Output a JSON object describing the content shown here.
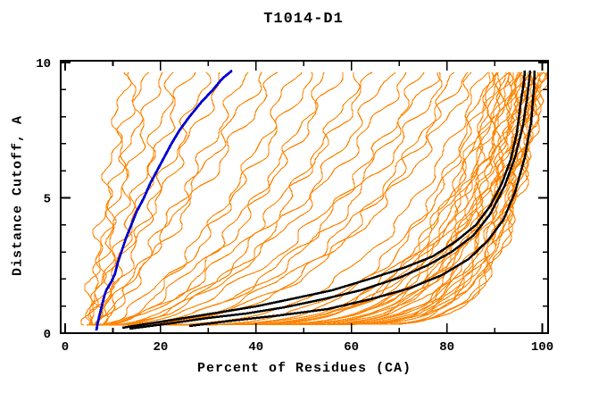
{
  "chart_data": {
    "type": "line",
    "title": "T1014-D1",
    "xlabel": "Percent of Residues (CA)",
    "ylabel": "Distance Cutoff, A",
    "xlim": [
      0,
      100
    ],
    "ylim": [
      0,
      10
    ],
    "grid": false,
    "legend": "none",
    "xticks_major": [
      0,
      20,
      40,
      60,
      80,
      100
    ],
    "xticks_minor": [
      10,
      30,
      50,
      70,
      90
    ],
    "xtick_labels": [
      "0",
      "20",
      "40",
      "60",
      "80",
      "100"
    ],
    "yticks_major": [
      0,
      5,
      10
    ],
    "yticks_minor": [
      1,
      2,
      3,
      4,
      6,
      7,
      8,
      9
    ],
    "ytick_labels": [
      "0",
      "5",
      "10"
    ],
    "colors": {
      "orange": "#ff8400",
      "blue": "#0000d2",
      "black": "#000000",
      "frame": "#000000",
      "background": "#ffffff"
    },
    "blue_curve": {
      "points": [
        [
          6.5,
          0.1
        ],
        [
          6.8,
          0.3
        ],
        [
          7.2,
          0.6
        ],
        [
          7.7,
          1.0
        ],
        [
          8.2,
          1.4
        ],
        [
          8.6,
          1.6
        ],
        [
          9.8,
          1.9
        ],
        [
          10.4,
          2.2
        ],
        [
          11.0,
          2.6
        ],
        [
          11.8,
          3.0
        ],
        [
          12.8,
          3.5
        ],
        [
          13.8,
          4.0
        ],
        [
          15.0,
          4.5
        ],
        [
          16.5,
          5.0
        ],
        [
          17.8,
          5.5
        ],
        [
          19.2,
          6.0
        ],
        [
          20.8,
          6.5
        ],
        [
          22.3,
          7.0
        ],
        [
          24.0,
          7.5
        ],
        [
          26.0,
          8.0
        ],
        [
          28.5,
          8.5
        ],
        [
          31.0,
          9.0
        ],
        [
          33.0,
          9.4
        ],
        [
          35.0,
          9.7
        ]
      ]
    },
    "black_curves": [
      {
        "points": [
          [
            12,
            0.2
          ],
          [
            18,
            0.35
          ],
          [
            25,
            0.55
          ],
          [
            32,
            0.75
          ],
          [
            40,
            1.0
          ],
          [
            48,
            1.3
          ],
          [
            56,
            1.6
          ],
          [
            64,
            2.0
          ],
          [
            71,
            2.4
          ],
          [
            77,
            2.85
          ],
          [
            82,
            3.4
          ],
          [
            86,
            4.0
          ],
          [
            89,
            4.7
          ],
          [
            91.5,
            5.5
          ],
          [
            93.3,
            6.4
          ],
          [
            94.6,
            7.4
          ],
          [
            95.5,
            8.4
          ],
          [
            96.1,
            9.3
          ],
          [
            96.4,
            9.7
          ]
        ]
      },
      {
        "points": [
          [
            13.5,
            0.18
          ],
          [
            22,
            0.35
          ],
          [
            30,
            0.55
          ],
          [
            38,
            0.72
          ],
          [
            46,
            0.95
          ],
          [
            54,
            1.25
          ],
          [
            62,
            1.6
          ],
          [
            70,
            2.05
          ],
          [
            76,
            2.5
          ],
          [
            81,
            3.0
          ],
          [
            85.5,
            3.6
          ],
          [
            89,
            4.4
          ],
          [
            92,
            5.4
          ],
          [
            94.3,
            6.5
          ],
          [
            96,
            7.7
          ],
          [
            97,
            8.8
          ],
          [
            97.4,
            9.7
          ]
        ]
      },
      {
        "points": [
          [
            26,
            0.25
          ],
          [
            35,
            0.45
          ],
          [
            45,
            0.65
          ],
          [
            55,
            0.9
          ],
          [
            64,
            1.25
          ],
          [
            72,
            1.65
          ],
          [
            79,
            2.15
          ],
          [
            84.5,
            2.75
          ],
          [
            88.5,
            3.4
          ],
          [
            91.8,
            4.2
          ],
          [
            94.3,
            5.2
          ],
          [
            96.3,
            6.5
          ],
          [
            97.6,
            7.8
          ],
          [
            98.2,
            9.0
          ],
          [
            98.4,
            9.7
          ]
        ]
      }
    ],
    "orange_curve_model": "x(y) = x0 + (xtop - x0) * ((y-0.25)/9.45)^p  for y in [0.3, 9.7], estimated from plot",
    "orange_curve_format": [
      "x0_percent_at_bottom",
      "xtop_percent_at_top",
      "shape_exponent_p"
    ],
    "orange_curves": [
      [
        4.5,
        12.5,
        1.0
      ],
      [
        5.5,
        15,
        1.15
      ],
      [
        4.0,
        17,
        0.9
      ],
      [
        6.0,
        20,
        1.2
      ],
      [
        5.0,
        23,
        0.85
      ],
      [
        6.5,
        26,
        1.1
      ],
      [
        7.0,
        30,
        0.95
      ],
      [
        5.5,
        34,
        1.05
      ],
      [
        6.0,
        38,
        0.8
      ],
      [
        7.5,
        42,
        1.0
      ],
      [
        6.5,
        45,
        0.9
      ],
      [
        5.5,
        48,
        0.55
      ],
      [
        7.0,
        52,
        0.7
      ],
      [
        6.0,
        55,
        0.5
      ],
      [
        8.0,
        58,
        0.65
      ],
      [
        5.0,
        62,
        0.45
      ],
      [
        7.5,
        65,
        0.6
      ],
      [
        6.5,
        68,
        0.5
      ],
      [
        8.5,
        72,
        0.55
      ],
      [
        6.0,
        75,
        0.4
      ],
      [
        7.0,
        78,
        0.5
      ],
      [
        9.0,
        80,
        0.45
      ],
      [
        6.5,
        82,
        0.35
      ],
      [
        8.0,
        84,
        0.42
      ],
      [
        7.0,
        86,
        0.38
      ],
      [
        5.5,
        88,
        0.28
      ],
      [
        7.0,
        89,
        0.22
      ],
      [
        8.5,
        90,
        0.25
      ],
      [
        6.0,
        90.5,
        0.18
      ],
      [
        9.0,
        91,
        0.2
      ],
      [
        7.5,
        91.5,
        0.15
      ],
      [
        10.0,
        92,
        0.22
      ],
      [
        6.5,
        92.5,
        0.12
      ],
      [
        8.0,
        93,
        0.18
      ],
      [
        11.0,
        93.5,
        0.2
      ],
      [
        7.0,
        94,
        0.14
      ],
      [
        9.5,
        94.5,
        0.16
      ],
      [
        6.0,
        95,
        0.1
      ],
      [
        8.5,
        95,
        0.2
      ],
      [
        12.0,
        95.5,
        0.13
      ],
      [
        7.5,
        96,
        0.17
      ],
      [
        10.5,
        96,
        0.1
      ],
      [
        6.5,
        96.5,
        0.14
      ],
      [
        9.0,
        97,
        0.12
      ],
      [
        11.5,
        97,
        0.18
      ],
      [
        7.0,
        97.5,
        0.1
      ],
      [
        8.0,
        98,
        0.15
      ],
      [
        12.5,
        98,
        0.09
      ],
      [
        6.0,
        98.5,
        0.12
      ],
      [
        10.0,
        99,
        0.1
      ],
      [
        7.5,
        99,
        0.16
      ],
      [
        9.0,
        99.5,
        0.08
      ],
      [
        13.0,
        100,
        0.12
      ],
      [
        8.0,
        100,
        0.1
      ],
      [
        11.0,
        100.5,
        0.09
      ],
      [
        6.5,
        100.5,
        0.13
      ],
      [
        9.5,
        99,
        0.08
      ],
      [
        12.0,
        100,
        0.11
      ]
    ]
  }
}
